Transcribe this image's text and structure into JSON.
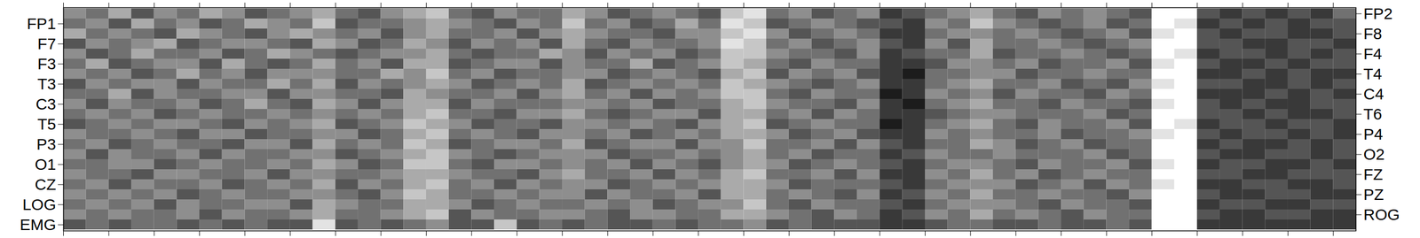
{
  "chart_data": {
    "type": "heatmap",
    "channels": [
      "FP2",
      "FP1",
      "F8",
      "F7",
      "F4",
      "F3",
      "T4",
      "T3",
      "C4",
      "C3",
      "T6",
      "T5",
      "P4",
      "P3",
      "O2",
      "O1",
      "FZ",
      "CZ",
      "PZ",
      "LOG",
      "ROG",
      "EMG"
    ],
    "xlim": [
      0,
      28.5
    ],
    "xticks": [
      0,
      1,
      2,
      3,
      4,
      5,
      6,
      7,
      8,
      9,
      10,
      11,
      12,
      13,
      14,
      15,
      16,
      17,
      18,
      19,
      20,
      21,
      22,
      23,
      24,
      25,
      26,
      27,
      28
    ],
    "tick_labels": "y",
    "clim": [
      0,
      9
    ],
    "colors": [
      "#000000",
      "#ffffff"
    ],
    "cells": [
      [
        5,
        4,
        6,
        3,
        5,
        4,
        6,
        5,
        3,
        4,
        5,
        6,
        4,
        3,
        5,
        6,
        7,
        4,
        3,
        5,
        4,
        4,
        6,
        5,
        3,
        4,
        5,
        4,
        3,
        7,
        8,
        4,
        5,
        3,
        4,
        5,
        2,
        3,
        4,
        5,
        6,
        4,
        3,
        5,
        4,
        5,
        4,
        3,
        9,
        9,
        3,
        2,
        3,
        2,
        3,
        2,
        4
      ],
      [
        4,
        5,
        3,
        6,
        4,
        5,
        3,
        4,
        6,
        5,
        4,
        7,
        3,
        4,
        4,
        5,
        6,
        5,
        4,
        3,
        5,
        4,
        7,
        4,
        5,
        3,
        4,
        6,
        4,
        8,
        7,
        3,
        4,
        5,
        4,
        3,
        3,
        2,
        5,
        4,
        7,
        5,
        4,
        3,
        4,
        5,
        3,
        4,
        9,
        8,
        2,
        3,
        2,
        3,
        2,
        3,
        3
      ],
      [
        6,
        4,
        5,
        4,
        3,
        6,
        5,
        4,
        3,
        5,
        6,
        5,
        4,
        5,
        3,
        5,
        6,
        4,
        4,
        5,
        3,
        5,
        6,
        5,
        4,
        4,
        3,
        5,
        5,
        7,
        8,
        5,
        3,
        4,
        5,
        4,
        2,
        2,
        4,
        5,
        5,
        4,
        5,
        4,
        3,
        4,
        5,
        3,
        8,
        9,
        3,
        2,
        3,
        3,
        2,
        2,
        3
      ],
      [
        3,
        5,
        4,
        5,
        6,
        3,
        4,
        5,
        5,
        4,
        3,
        6,
        5,
        3,
        4,
        6,
        5,
        3,
        5,
        4,
        5,
        3,
        6,
        4,
        3,
        5,
        4,
        4,
        5,
        8,
        7,
        4,
        5,
        3,
        4,
        5,
        3,
        2,
        5,
        3,
        6,
        4,
        4,
        5,
        4,
        3,
        4,
        5,
        9,
        9,
        3,
        3,
        2,
        2,
        3,
        3,
        2
      ],
      [
        5,
        3,
        4,
        6,
        4,
        4,
        5,
        3,
        4,
        6,
        5,
        4,
        3,
        4,
        5,
        5,
        6,
        4,
        3,
        4,
        4,
        6,
        5,
        3,
        5,
        4,
        5,
        3,
        4,
        7,
        7,
        5,
        4,
        4,
        3,
        5,
        2,
        3,
        4,
        4,
        6,
        3,
        4,
        4,
        5,
        4,
        3,
        4,
        9,
        8,
        2,
        3,
        3,
        2,
        3,
        2,
        3
      ],
      [
        4,
        6,
        3,
        4,
        5,
        5,
        3,
        6,
        4,
        3,
        4,
        6,
        4,
        5,
        3,
        6,
        6,
        3,
        4,
        5,
        5,
        3,
        5,
        4,
        4,
        6,
        3,
        4,
        5,
        7,
        6,
        4,
        3,
        5,
        4,
        4,
        2,
        2,
        3,
        5,
        5,
        4,
        5,
        3,
        4,
        4,
        5,
        3,
        8,
        9,
        3,
        2,
        2,
        3,
        2,
        3,
        3
      ],
      [
        5,
        4,
        5,
        3,
        4,
        6,
        4,
        5,
        3,
        5,
        5,
        5,
        4,
        4,
        6,
        5,
        7,
        4,
        5,
        3,
        4,
        4,
        5,
        5,
        3,
        4,
        5,
        4,
        3,
        6,
        7,
        3,
        5,
        4,
        5,
        3,
        2,
        1,
        4,
        4,
        5,
        5,
        3,
        4,
        4,
        5,
        4,
        4,
        9,
        9,
        2,
        2,
        3,
        2,
        3,
        2,
        2
      ],
      [
        3,
        5,
        4,
        5,
        5,
        3,
        5,
        4,
        4,
        6,
        4,
        6,
        3,
        5,
        4,
        5,
        6,
        5,
        3,
        4,
        5,
        4,
        6,
        3,
        4,
        5,
        4,
        5,
        4,
        7,
        6,
        5,
        4,
        3,
        4,
        5,
        2,
        2,
        4,
        5,
        6,
        4,
        4,
        5,
        3,
        4,
        3,
        5,
        8,
        9,
        3,
        3,
        2,
        2,
        3,
        2,
        3
      ],
      [
        4,
        4,
        6,
        3,
        5,
        4,
        4,
        5,
        5,
        3,
        5,
        5,
        4,
        4,
        3,
        6,
        5,
        4,
        4,
        5,
        3,
        5,
        6,
        4,
        5,
        3,
        5,
        4,
        5,
        7,
        7,
        4,
        3,
        5,
        4,
        4,
        1,
        2,
        5,
        4,
        5,
        3,
        5,
        4,
        4,
        3,
        5,
        4,
        9,
        9,
        2,
        2,
        2,
        3,
        2,
        3,
        2
      ],
      [
        5,
        3,
        5,
        4,
        4,
        5,
        3,
        4,
        6,
        4,
        3,
        6,
        5,
        3,
        5,
        6,
        6,
        3,
        5,
        4,
        4,
        4,
        5,
        5,
        4,
        5,
        3,
        4,
        4,
        6,
        7,
        5,
        4,
        4,
        3,
        5,
        2,
        1,
        4,
        5,
        6,
        4,
        4,
        3,
        5,
        4,
        4,
        3,
        8,
        9,
        3,
        2,
        3,
        2,
        2,
        3,
        3
      ],
      [
        4,
        5,
        4,
        5,
        3,
        4,
        5,
        4,
        4,
        5,
        4,
        5,
        4,
        5,
        4,
        6,
        7,
        4,
        4,
        3,
        5,
        5,
        6,
        4,
        3,
        4,
        5,
        5,
        3,
        6,
        6,
        4,
        5,
        3,
        5,
        4,
        2,
        2,
        3,
        4,
        5,
        5,
        4,
        4,
        4,
        5,
        3,
        4,
        9,
        9,
        3,
        3,
        2,
        3,
        2,
        2,
        3
      ],
      [
        3,
        4,
        5,
        4,
        5,
        5,
        4,
        3,
        5,
        4,
        5,
        6,
        3,
        4,
        5,
        7,
        6,
        5,
        3,
        4,
        4,
        3,
        5,
        5,
        4,
        5,
        4,
        3,
        5,
        6,
        7,
        3,
        4,
        5,
        4,
        4,
        1,
        2,
        4,
        5,
        6,
        4,
        3,
        5,
        4,
        4,
        5,
        3,
        9,
        8,
        2,
        3,
        3,
        2,
        3,
        3,
        2
      ],
      [
        5,
        4,
        4,
        5,
        4,
        3,
        5,
        5,
        3,
        4,
        4,
        5,
        5,
        3,
        4,
        6,
        7,
        4,
        5,
        4,
        3,
        5,
        5,
        4,
        5,
        3,
        4,
        5,
        4,
        6,
        6,
        5,
        3,
        4,
        5,
        3,
        2,
        2,
        5,
        4,
        5,
        4,
        4,
        5,
        3,
        4,
        4,
        5,
        8,
        9,
        3,
        2,
        3,
        3,
        2,
        3,
        2
      ],
      [
        4,
        5,
        3,
        4,
        5,
        4,
        4,
        3,
        5,
        5,
        3,
        6,
        4,
        5,
        4,
        7,
        6,
        3,
        4,
        5,
        5,
        4,
        6,
        3,
        4,
        5,
        5,
        3,
        5,
        5,
        7,
        4,
        4,
        5,
        3,
        5,
        3,
        2,
        4,
        4,
        6,
        5,
        3,
        4,
        5,
        3,
        4,
        4,
        9,
        9,
        2,
        3,
        2,
        2,
        3,
        2,
        3
      ],
      [
        5,
        3,
        5,
        4,
        4,
        5,
        3,
        5,
        4,
        4,
        5,
        5,
        3,
        4,
        5,
        6,
        7,
        5,
        4,
        3,
        4,
        5,
        5,
        5,
        3,
        4,
        4,
        5,
        4,
        5,
        6,
        4,
        5,
        3,
        4,
        4,
        2,
        3,
        5,
        4,
        4,
        5,
        4,
        4,
        4,
        5,
        3,
        4,
        9,
        9,
        3,
        2,
        2,
        3,
        3,
        2,
        3
      ],
      [
        4,
        4,
        5,
        5,
        3,
        4,
        5,
        4,
        4,
        5,
        4,
        6,
        5,
        3,
        4,
        7,
        7,
        4,
        3,
        5,
        5,
        4,
        5,
        4,
        5,
        3,
        5,
        4,
        3,
        5,
        6,
        5,
        3,
        4,
        5,
        4,
        3,
        2,
        4,
        5,
        5,
        4,
        3,
        5,
        4,
        4,
        5,
        3,
        8,
        9,
        2,
        3,
        3,
        2,
        2,
        3,
        2
      ],
      [
        5,
        4,
        4,
        3,
        5,
        5,
        4,
        4,
        5,
        3,
        5,
        5,
        4,
        4,
        5,
        6,
        6,
        5,
        4,
        4,
        3,
        5,
        6,
        4,
        4,
        5,
        3,
        5,
        4,
        6,
        7,
        4,
        4,
        5,
        3,
        5,
        2,
        2,
        5,
        4,
        6,
        4,
        5,
        3,
        4,
        5,
        4,
        4,
        9,
        9,
        3,
        3,
        2,
        2,
        3,
        3,
        3
      ],
      [
        4,
        5,
        3,
        5,
        4,
        4,
        5,
        3,
        4,
        5,
        4,
        6,
        3,
        5,
        4,
        6,
        7,
        4,
        5,
        3,
        5,
        4,
        5,
        5,
        3,
        4,
        5,
        4,
        5,
        6,
        6,
        5,
        3,
        4,
        4,
        4,
        3,
        2,
        4,
        5,
        5,
        5,
        3,
        4,
        5,
        3,
        5,
        4,
        8,
        9,
        2,
        2,
        3,
        3,
        2,
        2,
        3
      ],
      [
        5,
        4,
        5,
        4,
        5,
        3,
        4,
        5,
        4,
        4,
        5,
        5,
        4,
        3,
        5,
        7,
        6,
        4,
        4,
        5,
        4,
        5,
        5,
        3,
        5,
        4,
        4,
        5,
        3,
        6,
        6,
        4,
        5,
        4,
        3,
        5,
        2,
        3,
        5,
        4,
        6,
        4,
        4,
        5,
        4,
        4,
        3,
        5,
        9,
        9,
        3,
        2,
        2,
        3,
        3,
        2,
        2
      ],
      [
        4,
        5,
        4,
        5,
        3,
        5,
        4,
        4,
        5,
        5,
        3,
        6,
        5,
        4,
        4,
        6,
        6,
        5,
        3,
        4,
        5,
        4,
        4,
        5,
        4,
        5,
        3,
        4,
        5,
        5,
        7,
        4,
        3,
        5,
        4,
        4,
        3,
        2,
        4,
        5,
        5,
        5,
        4,
        3,
        5,
        4,
        4,
        3,
        9,
        9,
        2,
        3,
        3,
        2,
        2,
        3,
        3
      ],
      [
        5,
        4,
        5,
        4,
        4,
        5,
        3,
        5,
        4,
        4,
        5,
        6,
        4,
        4,
        5,
        6,
        7,
        3,
        5,
        4,
        4,
        5,
        5,
        4,
        3,
        5,
        5,
        4,
        4,
        6,
        6,
        5,
        4,
        3,
        5,
        4,
        2,
        3,
        5,
        4,
        6,
        4,
        5,
        4,
        3,
        5,
        4,
        4,
        9,
        9,
        3,
        2,
        2,
        3,
        3,
        2,
        2
      ],
      [
        3,
        4,
        3,
        4,
        4,
        3,
        4,
        3,
        4,
        3,
        3,
        8,
        3,
        4,
        3,
        4,
        5,
        3,
        3,
        7,
        3,
        4,
        3,
        4,
        3,
        3,
        4,
        3,
        4,
        4,
        5,
        3,
        4,
        3,
        3,
        3,
        2,
        2,
        3,
        4,
        4,
        3,
        3,
        4,
        3,
        3,
        4,
        3,
        9,
        9,
        2,
        2,
        2,
        2,
        2,
        2,
        2
      ]
    ]
  }
}
